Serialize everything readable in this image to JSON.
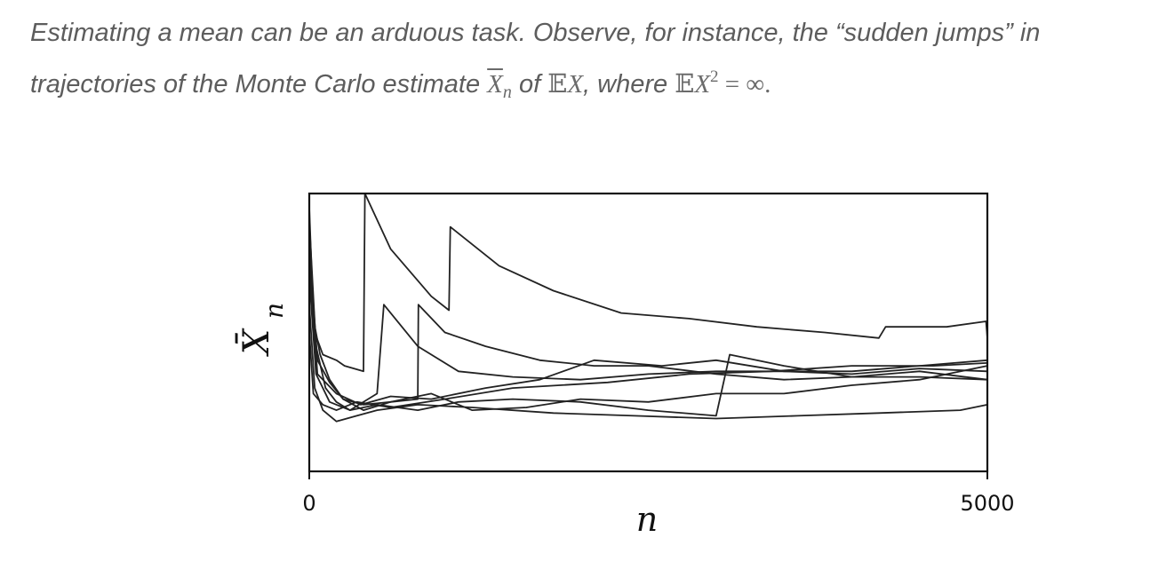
{
  "caption": {
    "text_1": "Estimating a mean can be an arduous task. Observe, for instance, the “sudden jumps” in trajectories of the Monte Carlo estimate ",
    "xbar_symbol": "X",
    "xbar_subscript": "n",
    "text_2": " of ",
    "expectation_symbol": "𝔼",
    "x_symbol": "X",
    "text_3": ", where ",
    "x_symbol_2": "X",
    "exponent": "2",
    "equals_infinity": " = ∞",
    "period": "."
  },
  "chart_data": {
    "type": "line",
    "xlabel": "n",
    "ylabel": "X̄",
    "ylabel_subscript": "n",
    "x_tick_labels": [
      "0",
      "5000"
    ],
    "xlim": [
      0,
      5000
    ],
    "ylim": [
      0,
      1
    ],
    "grid": false,
    "series": [
      {
        "x": [
          0,
          30,
          80,
          150,
          250,
          400,
          600,
          900,
          1200,
          1600,
          2000,
          2500,
          3000,
          3500,
          4000,
          4500,
          5000
        ],
        "values": [
          0.95,
          0.55,
          0.42,
          0.33,
          0.26,
          0.22,
          0.25,
          0.28,
          0.22,
          0.23,
          0.26,
          0.25,
          0.28,
          0.28,
          0.31,
          0.33,
          0.38
        ]
      },
      {
        "x": [
          0,
          40,
          100,
          200,
          260,
          400,
          410,
          600,
          900,
          1030,
          1040,
          1400,
          1800,
          2300,
          2800,
          3300,
          3800,
          4200,
          4250,
          4700,
          4990,
          5000
        ],
        "values": [
          0.85,
          0.5,
          0.42,
          0.4,
          0.38,
          0.36,
          1.0,
          0.8,
          0.63,
          0.58,
          0.88,
          0.74,
          0.65,
          0.57,
          0.55,
          0.52,
          0.5,
          0.48,
          0.52,
          0.52,
          0.54,
          0.48
        ]
      },
      {
        "x": [
          0,
          50,
          120,
          200,
          300,
          500,
          550,
          800,
          1100,
          1500,
          2000,
          2500,
          3000,
          3500,
          4000,
          4500,
          5000
        ],
        "values": [
          0.9,
          0.45,
          0.3,
          0.25,
          0.22,
          0.28,
          0.6,
          0.45,
          0.36,
          0.34,
          0.33,
          0.35,
          0.36,
          0.36,
          0.36,
          0.38,
          0.4
        ]
      },
      {
        "x": [
          0,
          60,
          150,
          250,
          400,
          600,
          800,
          805,
          1000,
          1300,
          1700,
          2100,
          2500,
          3000,
          3500,
          4000,
          4500,
          5000
        ],
        "values": [
          0.8,
          0.4,
          0.32,
          0.26,
          0.24,
          0.25,
          0.26,
          0.6,
          0.5,
          0.45,
          0.4,
          0.38,
          0.38,
          0.35,
          0.33,
          0.34,
          0.36,
          0.33
        ]
      },
      {
        "x": [
          0,
          50,
          150,
          300,
          500,
          800,
          1100,
          1500,
          2000,
          2500,
          3000,
          3100,
          3500,
          4000,
          4500,
          5000
        ],
        "values": [
          0.7,
          0.35,
          0.25,
          0.22,
          0.24,
          0.22,
          0.25,
          0.26,
          0.25,
          0.22,
          0.2,
          0.42,
          0.38,
          0.34,
          0.34,
          0.33
        ]
      },
      {
        "x": [
          0,
          40,
          100,
          200,
          350,
          500,
          800,
          1200,
          1800,
          2400,
          3000,
          3600,
          4200,
          4800,
          5000
        ],
        "values": [
          0.6,
          0.3,
          0.22,
          0.18,
          0.2,
          0.22,
          0.24,
          0.23,
          0.21,
          0.2,
          0.19,
          0.2,
          0.21,
          0.22,
          0.24
        ]
      },
      {
        "x": [
          0,
          60,
          200,
          380,
          600,
          900,
          1300,
          1700,
          2100,
          2600,
          3000,
          3500,
          4000,
          4500,
          5000
        ],
        "values": [
          0.75,
          0.35,
          0.28,
          0.24,
          0.27,
          0.26,
          0.3,
          0.33,
          0.4,
          0.38,
          0.4,
          0.36,
          0.35,
          0.37,
          0.36
        ]
      },
      {
        "x": [
          0,
          30,
          100,
          200,
          350,
          600,
          1000,
          1500,
          2200,
          2800,
          3400,
          4000,
          4600,
          5000
        ],
        "values": [
          0.5,
          0.28,
          0.24,
          0.22,
          0.25,
          0.23,
          0.26,
          0.3,
          0.32,
          0.35,
          0.36,
          0.38,
          0.38,
          0.39
        ]
      }
    ]
  }
}
